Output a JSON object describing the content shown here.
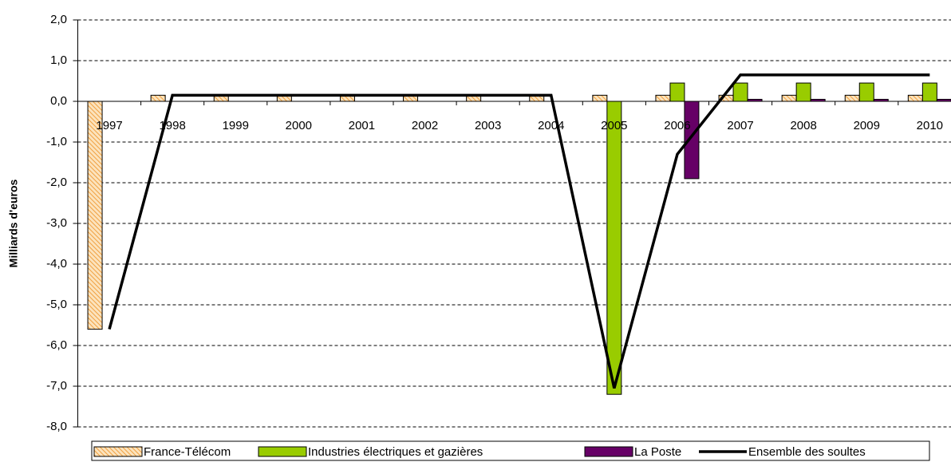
{
  "chart_data": {
    "type": "bar",
    "y_label": "Milliards d'euros",
    "categories": [
      "1997",
      "1998",
      "1999",
      "2000",
      "2001",
      "2002",
      "2003",
      "2004",
      "2005",
      "2006",
      "2007",
      "2008",
      "2009",
      "2010"
    ],
    "series": [
      {
        "name": "France-Télécom",
        "color": "#f8c888",
        "pattern": "hatch",
        "values": [
          -5.6,
          0.15,
          0.15,
          0.15,
          0.15,
          0.15,
          0.15,
          0.15,
          0.15,
          0.15,
          0.15,
          0.15,
          0.15,
          0.15
        ]
      },
      {
        "name": "Industries électriques et gazières",
        "color": "#99cc00",
        "values": [
          null,
          null,
          null,
          null,
          null,
          null,
          null,
          null,
          -7.2,
          0.45,
          0.45,
          0.45,
          0.45,
          0.45
        ]
      },
      {
        "name": "La Poste",
        "color": "#660066",
        "values": [
          null,
          null,
          null,
          null,
          null,
          null,
          null,
          null,
          null,
          -1.9,
          0.05,
          0.05,
          0.05,
          0.05
        ]
      },
      {
        "name": "Ensemble des soultes",
        "color": "#000000",
        "type": "line",
        "values": [
          -5.6,
          0.15,
          0.15,
          0.15,
          0.15,
          0.15,
          0.15,
          0.15,
          -7.05,
          -1.3,
          0.65,
          0.65,
          0.65,
          0.65
        ]
      }
    ],
    "ylim": [
      -8,
      2
    ],
    "yticks": [
      {
        "value": 2,
        "label": "2,0"
      },
      {
        "value": 1,
        "label": "1,0"
      },
      {
        "value": 0,
        "label": "0,0"
      },
      {
        "value": -1,
        "label": "-1,0"
      },
      {
        "value": -2,
        "label": "-2,0"
      },
      {
        "value": -3,
        "label": "-3,0"
      },
      {
        "value": -4,
        "label": "-4,0"
      },
      {
        "value": -5,
        "label": "-5,0"
      },
      {
        "value": -6,
        "label": "-6,0"
      },
      {
        "value": -7,
        "label": "-7,0"
      },
      {
        "value": -8,
        "label": "-8,0"
      }
    ],
    "grid": true,
    "legend": "bottom"
  }
}
